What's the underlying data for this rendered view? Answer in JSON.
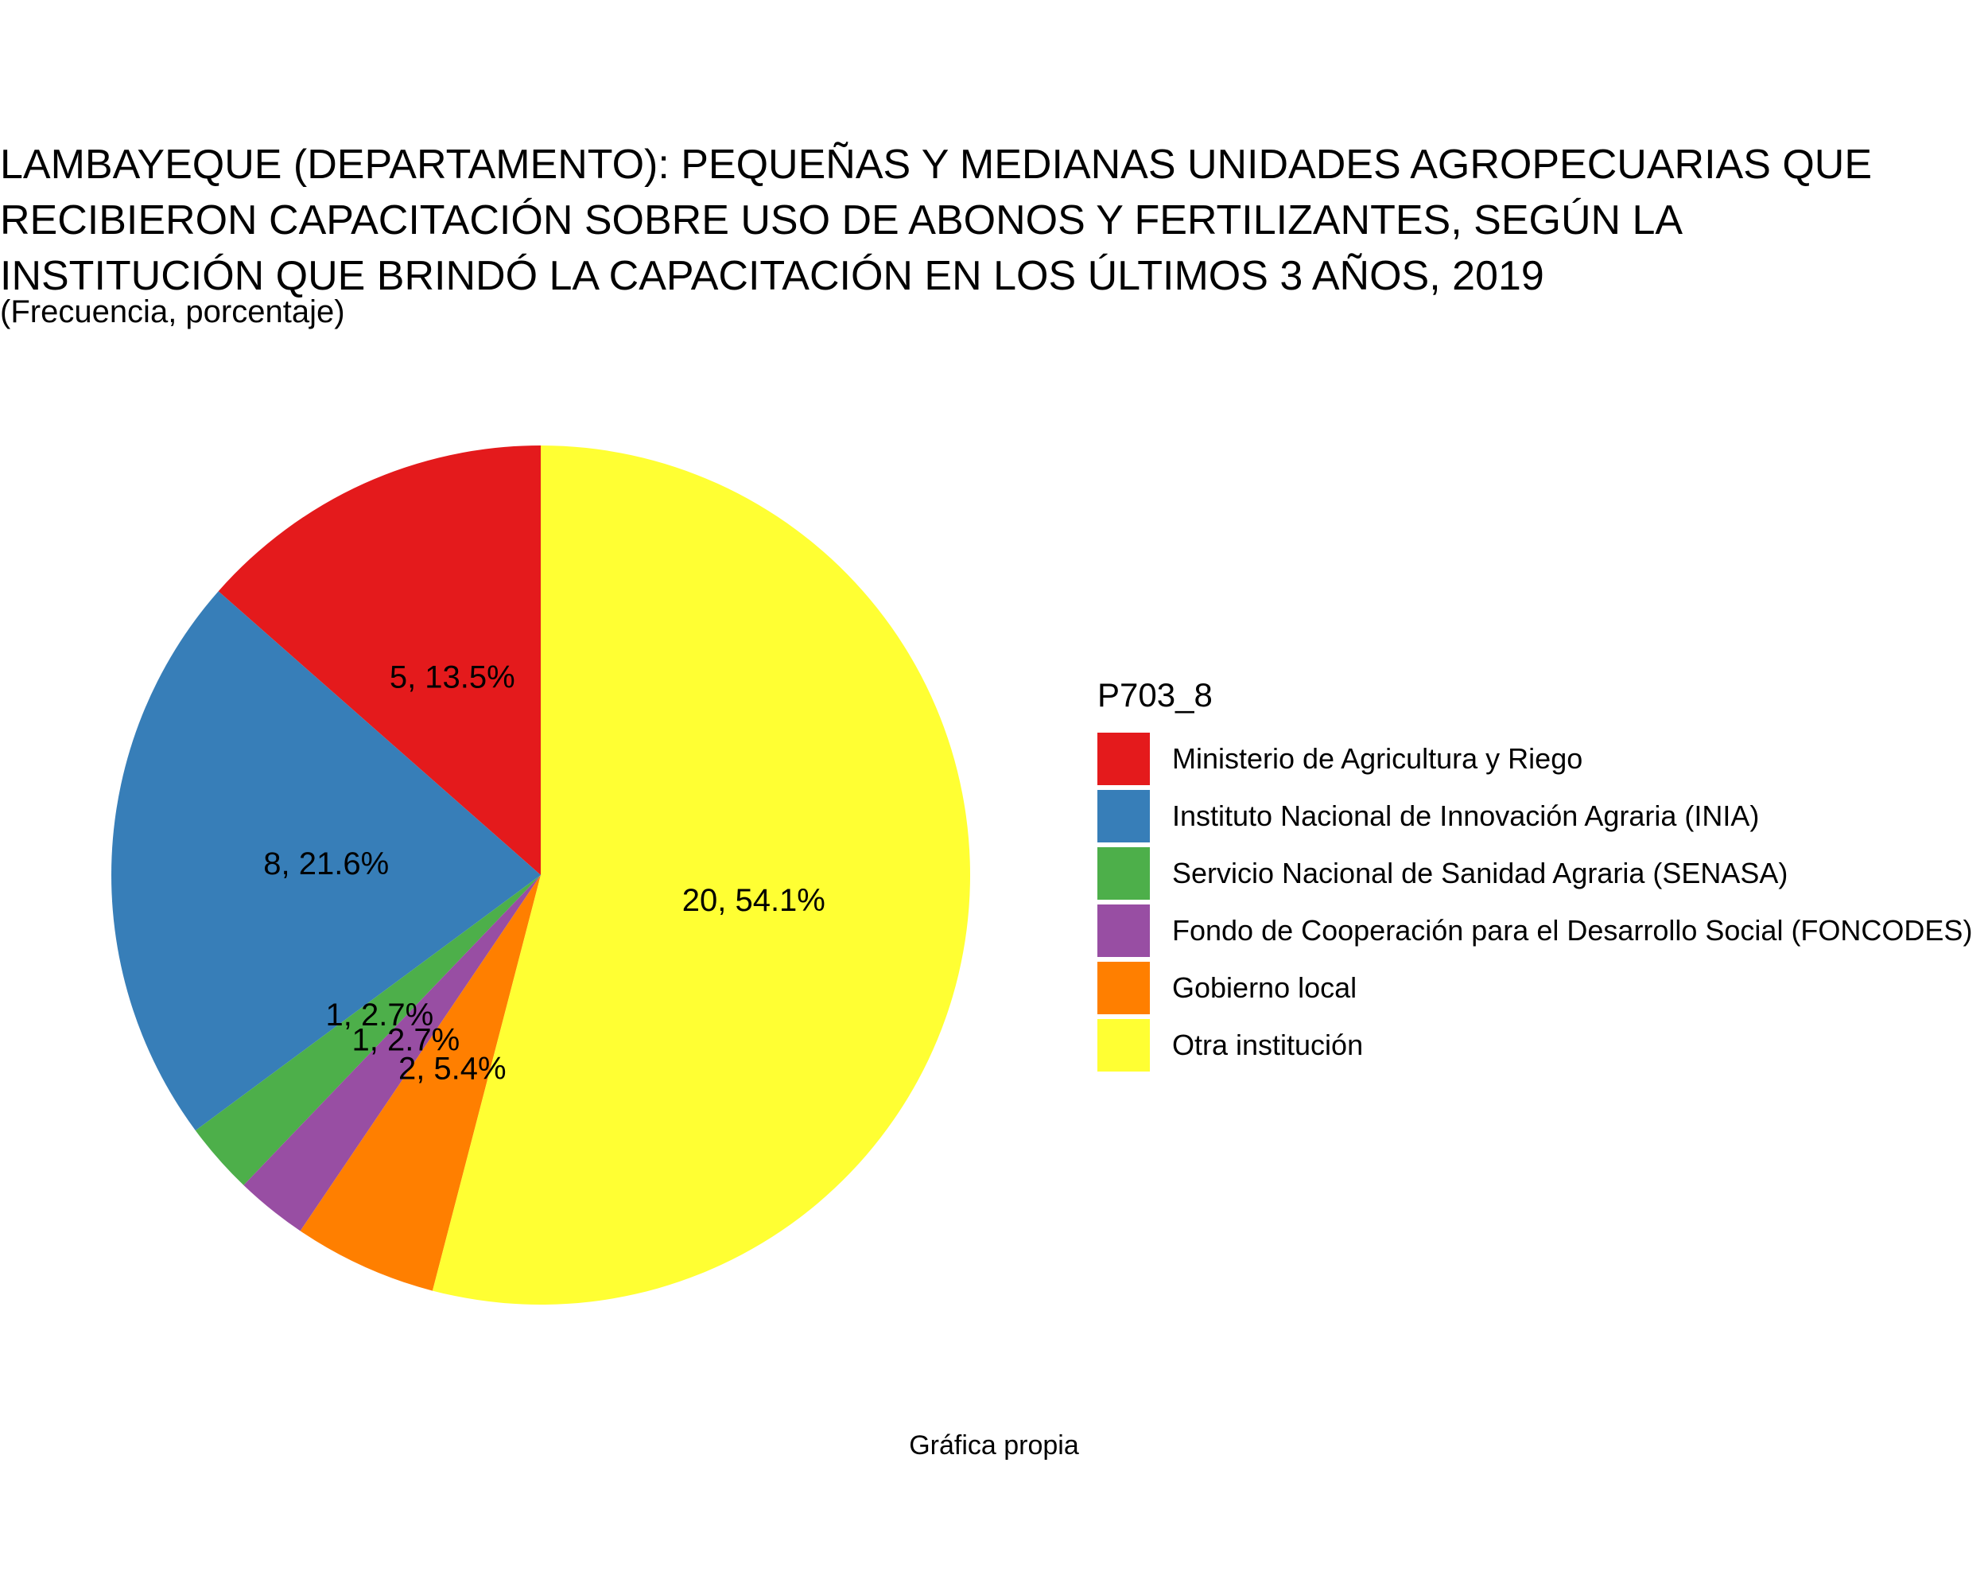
{
  "title": "LAMBAYEQUE (DEPARTAMENTO): PEQUEÑAS Y MEDIANAS UNIDADES AGROPECUARIAS QUE\nRECIBIERON CAPACITACIÓN SOBRE USO DE ABONOS Y FERTILIZANTES, SEGÚN LA\nINSTITUCIÓN QUE BRINDÓ LA CAPACITACIÓN EN LOS ÚLTIMOS 3 AÑOS, 2019",
  "subtitle": "(Frecuencia, porcentaje)",
  "caption": "Gráfica propia",
  "legend_title": "P703_8",
  "chart_data": {
    "type": "pie",
    "categories": [
      "Ministerio de Agricultura y Riego",
      "Instituto Nacional de Innovación Agraria (INIA)",
      "Servicio Nacional de Sanidad Agraria (SENASA)",
      "Fondo de Cooperación para el Desarrollo Social (FONCODES)",
      "Gobierno local",
      "Otra institución"
    ],
    "values": [
      5,
      8,
      1,
      1,
      2,
      20
    ],
    "percentages": [
      13.5,
      21.6,
      2.7,
      2.7,
      5.4,
      54.1
    ],
    "labels": [
      "5, 13.5%",
      "8, 21.6%",
      "1, 2.7%",
      "1, 2.7%",
      "2, 5.4%",
      "20, 54.1%"
    ],
    "colors": [
      "#E41A1C",
      "#377EB8",
      "#4DAF4A",
      "#984EA3",
      "#FF7F00",
      "#FFFF33"
    ],
    "direction": "counterclockwise from top",
    "legend_position": "right"
  }
}
